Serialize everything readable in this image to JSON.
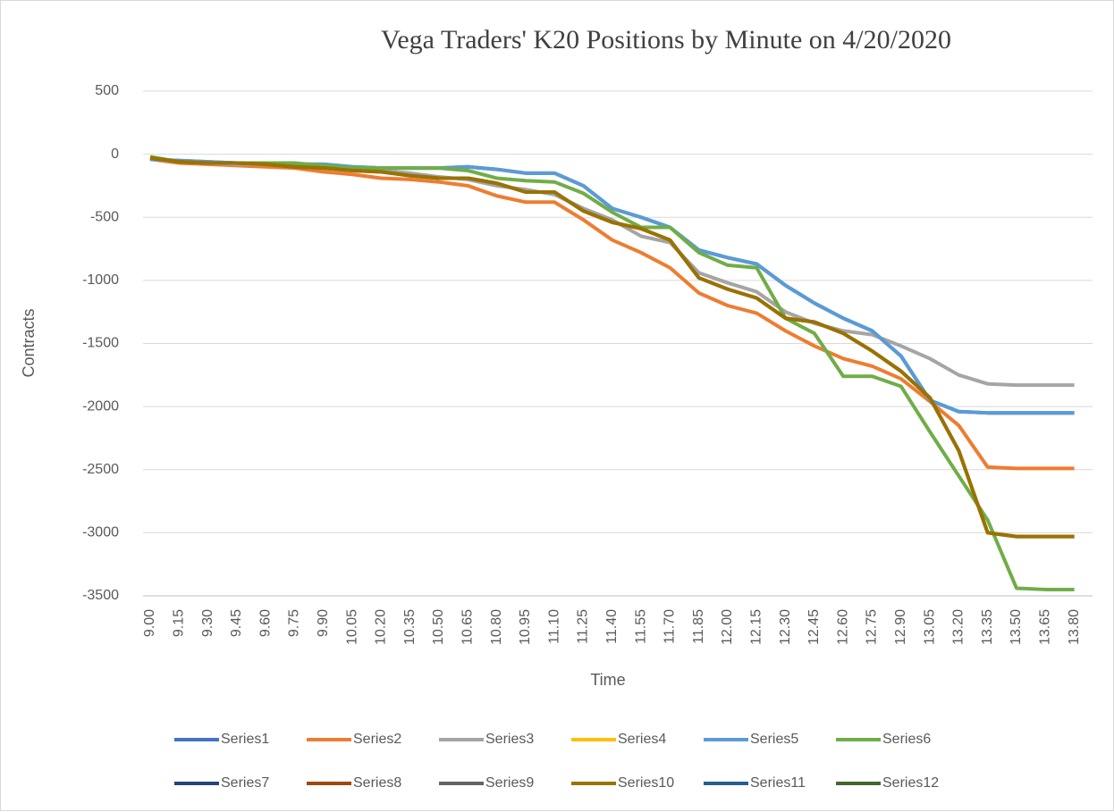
{
  "chart_data": {
    "type": "line",
    "title": "Vega Traders' K20 Positions by Minute on 4/20/2020",
    "x_label": "Time",
    "y_label": "Contracts",
    "categories": [
      "9.00",
      "9.15",
      "9.30",
      "9.45",
      "9.60",
      "9.75",
      "9.90",
      "10.05",
      "10.20",
      "10.35",
      "10.50",
      "10.65",
      "10.80",
      "10.95",
      "11.10",
      "11.25",
      "11.40",
      "11.55",
      "11.70",
      "11.85",
      "12.00",
      "12.15",
      "12.30",
      "12.45",
      "12.60",
      "12.75",
      "12.90",
      "13.05",
      "13.20",
      "13.35",
      "13.50",
      "13.65",
      "13.80"
    ],
    "ylim": [
      -3500,
      500
    ],
    "yticks": [
      500,
      0,
      -500,
      -1000,
      -1500,
      -2000,
      -2500,
      -3000,
      -3500
    ],
    "grid": true,
    "legend": "bottom",
    "series": [
      {
        "name": "Series1",
        "color": "#4472c4",
        "values": [
          -40,
          -50,
          -60,
          -70,
          -70,
          -80,
          -80,
          -100,
          -110,
          -110,
          -110,
          -100,
          -120,
          -150,
          -150,
          -250,
          -430,
          -500,
          -580,
          -760,
          -820,
          -870,
          -1040,
          -1180,
          -1300,
          -1400,
          -1600,
          -1950,
          -2040,
          -2050,
          -2050,
          -2050,
          -2050
        ]
      },
      {
        "name": "Series2",
        "color": "#ed7d31",
        "values": [
          -40,
          -70,
          -80,
          -90,
          -100,
          -110,
          -140,
          -160,
          -190,
          -200,
          -220,
          -250,
          -330,
          -380,
          -380,
          -520,
          -680,
          -780,
          -900,
          -1100,
          -1200,
          -1260,
          -1400,
          -1520,
          -1620,
          -1680,
          -1780,
          -1960,
          -2150,
          -2480,
          -2490,
          -2490,
          -2490
        ]
      },
      {
        "name": "Series3",
        "color": "#a5a5a5",
        "values": [
          -40,
          -60,
          -70,
          -80,
          -80,
          -90,
          -110,
          -120,
          -130,
          -150,
          -180,
          -200,
          -250,
          -280,
          -320,
          -430,
          -520,
          -650,
          -700,
          -940,
          -1020,
          -1090,
          -1250,
          -1340,
          -1400,
          -1430,
          -1520,
          -1620,
          -1750,
          -1820,
          -1830,
          -1830,
          -1830
        ]
      },
      {
        "name": "Series4",
        "color": "#ffc000",
        "values": [
          null,
          null,
          null,
          null,
          null,
          null,
          null,
          null,
          null,
          null,
          null,
          null,
          null,
          null,
          null,
          null,
          null,
          null,
          null,
          null,
          null,
          null,
          null,
          null,
          null,
          null,
          null,
          null,
          null,
          null,
          null,
          null,
          null
        ]
      },
      {
        "name": "Series5",
        "color": "#5b9bd5",
        "values": [
          -40,
          -50,
          -60,
          -70,
          -70,
          -80,
          -80,
          -100,
          -110,
          -110,
          -110,
          -100,
          -120,
          -150,
          -150,
          -250,
          -430,
          -500,
          -580,
          -760,
          -820,
          -870,
          -1040,
          -1180,
          -1300,
          -1400,
          -1600,
          -1950,
          -2040,
          -2050,
          -2050,
          -2050,
          -2050
        ]
      },
      {
        "name": "Series6",
        "color": "#70ad47",
        "values": [
          -20,
          -60,
          -70,
          -70,
          -70,
          -70,
          -90,
          -110,
          -110,
          -110,
          -110,
          -130,
          -190,
          -210,
          -220,
          -310,
          -460,
          -580,
          -580,
          -780,
          -880,
          -900,
          -1300,
          -1420,
          -1760,
          -1760,
          -1840,
          -2200,
          -2550,
          -2900,
          -3440,
          -3450,
          -3450
        ]
      },
      {
        "name": "Series7",
        "color": "#264478",
        "values": [
          null,
          null,
          null,
          null,
          null,
          null,
          null,
          null,
          null,
          null,
          null,
          null,
          null,
          null,
          null,
          null,
          null,
          null,
          null,
          null,
          null,
          null,
          null,
          null,
          null,
          null,
          null,
          null,
          null,
          null,
          null,
          null,
          null
        ]
      },
      {
        "name": "Series8",
        "color": "#9e480e",
        "values": [
          -30,
          -60,
          -70,
          -70,
          -80,
          -100,
          -110,
          -130,
          -140,
          -170,
          -190,
          -190,
          -230,
          -300,
          -300,
          -450,
          -540,
          -590,
          -680,
          -980,
          -1070,
          -1140,
          -1300,
          -1330,
          -1420,
          -1560,
          -1720,
          -1930,
          -2350,
          -3000,
          -3030,
          -3030,
          -3030
        ]
      },
      {
        "name": "Series9",
        "color": "#636363",
        "values": [
          null,
          null,
          null,
          null,
          null,
          null,
          null,
          null,
          null,
          null,
          null,
          null,
          null,
          null,
          null,
          null,
          null,
          null,
          null,
          null,
          null,
          null,
          null,
          null,
          null,
          null,
          null,
          null,
          null,
          null,
          null,
          null,
          null
        ]
      },
      {
        "name": "Series10",
        "color": "#997300",
        "values": [
          -30,
          -60,
          -70,
          -70,
          -80,
          -100,
          -110,
          -130,
          -140,
          -170,
          -190,
          -190,
          -230,
          -300,
          -300,
          -450,
          -540,
          -590,
          -680,
          -980,
          -1070,
          -1140,
          -1300,
          -1330,
          -1420,
          -1560,
          -1720,
          -1930,
          -2350,
          -3000,
          -3030,
          -3030,
          -3030
        ]
      },
      {
        "name": "Series11",
        "color": "#255e91",
        "values": [
          null,
          null,
          null,
          null,
          null,
          null,
          null,
          null,
          null,
          null,
          null,
          null,
          null,
          null,
          null,
          null,
          null,
          null,
          null,
          null,
          null,
          null,
          null,
          null,
          null,
          null,
          null,
          null,
          null,
          null,
          null,
          null,
          null
        ]
      },
      {
        "name": "Series12",
        "color": "#43682b",
        "values": [
          null,
          null,
          null,
          null,
          null,
          null,
          null,
          null,
          null,
          null,
          null,
          null,
          null,
          null,
          null,
          null,
          null,
          null,
          null,
          null,
          null,
          null,
          null,
          null,
          null,
          null,
          null,
          null,
          null,
          null,
          null,
          null,
          null
        ]
      }
    ]
  }
}
